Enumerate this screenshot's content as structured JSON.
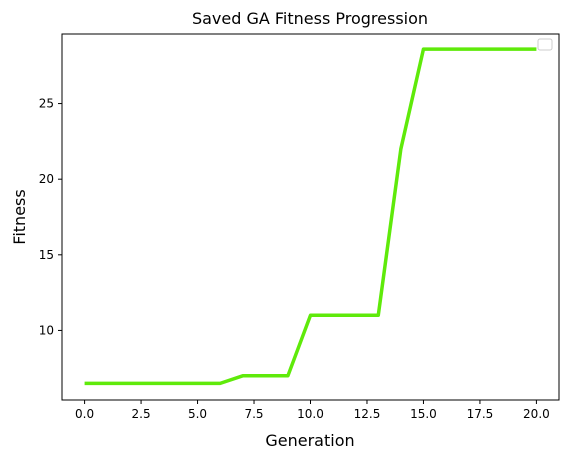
{
  "chart_data": {
    "type": "line",
    "title": "Saved GA Fitness Progression",
    "xlabel": "Generation",
    "ylabel": "Fitness",
    "xlim": [
      -1.0,
      21.0
    ],
    "ylim": [
      5.4,
      29.6
    ],
    "xticks": [
      0.0,
      2.5,
      5.0,
      7.5,
      10.0,
      12.5,
      15.0,
      17.5,
      20.0
    ],
    "xtick_labels": [
      "0.0",
      "2.5",
      "5.0",
      "7.5",
      "10.0",
      "12.5",
      "15.0",
      "17.5",
      "20.0"
    ],
    "yticks": [
      10,
      15,
      20,
      25
    ],
    "ytick_labels": [
      "10",
      "15",
      "20",
      "25"
    ],
    "grid": false,
    "legend": "top-right",
    "series": [
      {
        "color": "#5fea0a",
        "x": [
          0,
          1,
          2,
          3,
          4,
          5,
          6,
          7,
          8,
          9,
          10,
          11,
          12,
          13,
          14,
          15,
          16,
          17,
          18,
          19,
          20
        ],
        "y": [
          6.5,
          6.5,
          6.5,
          6.5,
          6.5,
          6.5,
          6.5,
          7.0,
          7.0,
          7.0,
          11.0,
          11.0,
          11.0,
          11.0,
          22.0,
          28.6,
          28.6,
          28.6,
          28.6,
          28.6,
          28.6
        ]
      }
    ]
  }
}
